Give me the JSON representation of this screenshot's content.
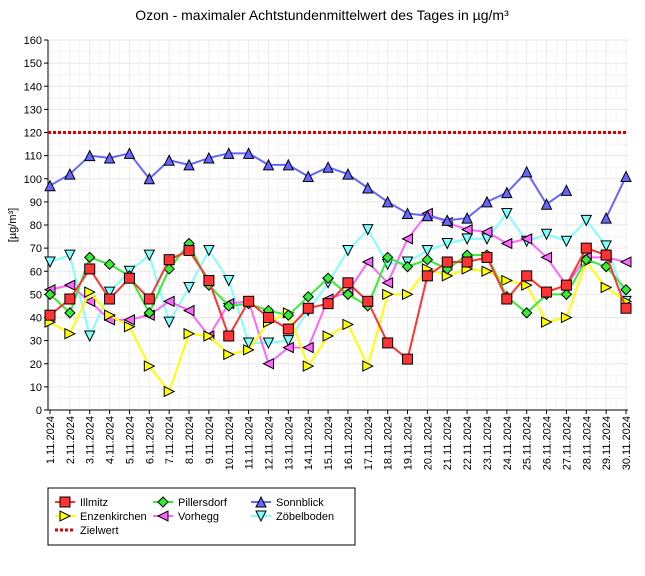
{
  "chart_data": {
    "type": "line",
    "title": "Ozon -  maximaler Achtstundenmittelwert des Tages in µg/m³",
    "ylabel": "[µg/m³]",
    "xlabel": "",
    "ylim": [
      0,
      160
    ],
    "yticks": [
      0,
      10,
      20,
      30,
      40,
      50,
      60,
      70,
      80,
      90,
      100,
      110,
      120,
      130,
      140,
      150,
      160
    ],
    "grid": true,
    "legend_position": "bottom-left",
    "categories": [
      "1.11.2024",
      "2.11.2024",
      "3.11.2024",
      "4.11.2024",
      "5.11.2024",
      "6.11.2024",
      "7.11.2024",
      "8.11.2024",
      "9.11.2024",
      "10.11.2024",
      "11.11.2024",
      "12.11.2024",
      "13.11.2024",
      "14.11.2024",
      "15.11.2024",
      "16.11.2024",
      "17.11.2024",
      "18.11.2024",
      "19.11.2024",
      "20.11.2024",
      "21.11.2024",
      "22.11.2024",
      "23.11.2024",
      "24.11.2024",
      "25.11.2024",
      "26.11.2024",
      "27.11.2024",
      "28.11.2024",
      "29.11.2024",
      "30.11.2024"
    ],
    "series": [
      {
        "name": "Zöbelboden",
        "color": "#80ffff",
        "marker": "down",
        "values": [
          64,
          67,
          32,
          51,
          60,
          67,
          38,
          53,
          69,
          56,
          29,
          29,
          30,
          43,
          55,
          69,
          78,
          63,
          64,
          69,
          72,
          74,
          74,
          85,
          73,
          76,
          73,
          82,
          71,
          47
        ]
      },
      {
        "name": "Vorhegg",
        "color": "#ff66ff",
        "marker": "left",
        "values": [
          52,
          54,
          47,
          39,
          39,
          41,
          47,
          43,
          32,
          46,
          47,
          20,
          27,
          27,
          48,
          51,
          64,
          55,
          74,
          85,
          81,
          78,
          77,
          72,
          74,
          66,
          54,
          66,
          66,
          64
        ]
      },
      {
        "name": "Enzenkirchen",
        "color": "#ffff00",
        "marker": "right",
        "values": [
          38,
          33,
          51,
          41,
          36,
          19,
          8,
          33,
          32,
          24,
          26,
          38,
          42,
          19,
          32,
          37,
          19,
          50,
          50,
          61,
          58,
          61,
          60,
          56,
          54,
          38,
          40,
          64,
          53,
          47
        ]
      },
      {
        "name": "Sonnblick",
        "color": "#6666ff",
        "marker": "up",
        "values": [
          97,
          102,
          110,
          109,
          111,
          100,
          108,
          106,
          109,
          111,
          111,
          106,
          106,
          101,
          105,
          102,
          96,
          90,
          85,
          84,
          82,
          83,
          90,
          94,
          103,
          89,
          95,
          null,
          83,
          101
        ]
      },
      {
        "name": "Pillersdorf",
        "color": "#33ee33",
        "marker": "diamond",
        "values": [
          50,
          42,
          66,
          63,
          58,
          42,
          61,
          72,
          54,
          45,
          46,
          43,
          41,
          49,
          57,
          50,
          45,
          66,
          62,
          65,
          61,
          67,
          67,
          49,
          42,
          50,
          50,
          65,
          62,
          52
        ]
      },
      {
        "name": "Illmitz",
        "color": "#ff3333",
        "marker": "square",
        "values": [
          41,
          48,
          61,
          48,
          57,
          48,
          65,
          69,
          56,
          32,
          47,
          40,
          35,
          44,
          46,
          55,
          47,
          29,
          22,
          58,
          64,
          64,
          66,
          48,
          58,
          51,
          54,
          70,
          67,
          44
        ]
      }
    ],
    "reference_line": {
      "name": "Zielwert",
      "value": 120,
      "color": "#dd0000"
    },
    "legend": [
      "Illmitz",
      "Pillersdorf",
      "Sonnblick",
      "Enzenkirchen",
      "Vorhegg",
      "Zöbelboden",
      "Zielwert"
    ]
  }
}
